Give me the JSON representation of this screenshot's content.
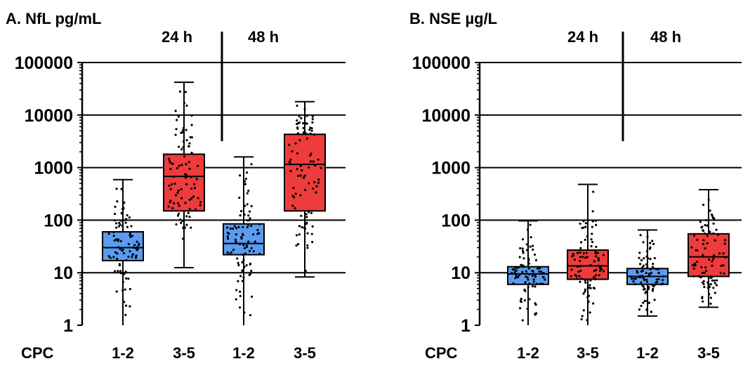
{
  "chart_data": [
    {
      "type": "box",
      "title": "A. NfL pg/mL",
      "yscale": "log",
      "ylim": [
        1,
        100000
      ],
      "yticks": [
        "1",
        "10",
        "100",
        "1000",
        "10000",
        "100000"
      ],
      "grid": "horizontal at major ticks",
      "xlabel": "CPC",
      "timepoints": [
        "24 h",
        "48 h"
      ],
      "categories": [
        "1-2",
        "3-5",
        "1-2",
        "3-5"
      ],
      "colors": {
        "good_outcome": "#5b9bf0",
        "poor_outcome": "#ee3b3b"
      },
      "boxes": [
        {
          "label": "1-2",
          "time": "24 h",
          "color": "#5b9bf0",
          "min": 1,
          "q1": 17,
          "median": 30,
          "q3": 60,
          "max": 590
        },
        {
          "label": "3-5",
          "time": "24 h",
          "color": "#ee3b3b",
          "min": 12.5,
          "q1": 150,
          "median": 680,
          "q3": 1800,
          "max": 42000
        },
        {
          "label": "1-2",
          "time": "48 h",
          "color": "#5b9bf0",
          "min": 1,
          "q1": 22,
          "median": 36,
          "q3": 85,
          "max": 1600
        },
        {
          "label": "3-5",
          "time": "48 h",
          "color": "#ee3b3b",
          "min": 8.3,
          "q1": 150,
          "median": 1150,
          "q3": 4300,
          "max": 18000
        }
      ]
    },
    {
      "type": "box",
      "title": "B. NSE µg/L",
      "yscale": "log",
      "ylim": [
        1,
        100000
      ],
      "yticks": [
        "1",
        "10",
        "100",
        "1000",
        "10000",
        "100000"
      ],
      "grid": "horizontal at major ticks",
      "xlabel": "CPC",
      "timepoints": [
        "24 h",
        "48 h"
      ],
      "categories": [
        "1-2",
        "3-5",
        "1-2",
        "3-5"
      ],
      "colors": {
        "good_outcome": "#5b9bf0",
        "poor_outcome": "#ee3b3b"
      },
      "boxes": [
        {
          "label": "1-2",
          "time": "24 h",
          "color": "#5b9bf0",
          "min": 1,
          "q1": 6,
          "median": 9.5,
          "q3": 13,
          "max": 97
        },
        {
          "label": "3-5",
          "time": "24 h",
          "color": "#ee3b3b",
          "min": 1,
          "q1": 7.5,
          "median": 13.5,
          "q3": 27,
          "max": 480
        },
        {
          "label": "1-2",
          "time": "48 h",
          "color": "#5b9bf0",
          "min": 1.5,
          "q1": 6,
          "median": 8.5,
          "q3": 12,
          "max": 65
        },
        {
          "label": "3-5",
          "time": "48 h",
          "color": "#ee3b3b",
          "min": 2.2,
          "q1": 8.5,
          "median": 20,
          "q3": 55,
          "max": 380
        }
      ]
    }
  ]
}
